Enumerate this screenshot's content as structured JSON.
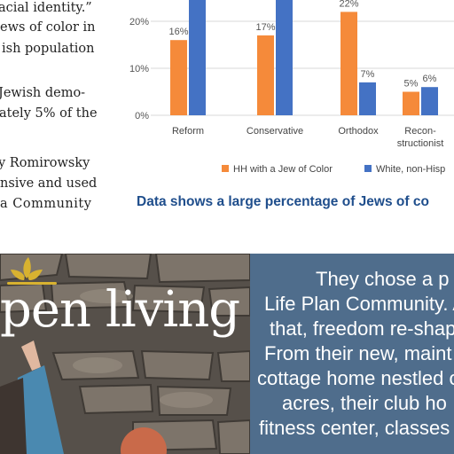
{
  "article": {
    "lines": [
      "acial identity.”",
      "ews of color in",
      "ish population",
      "",
      " Jewish demo-",
      "ately 5% of the",
      "",
      "y Romirowsky",
      "nsive and used",
      "a   Community"
    ]
  },
  "chart_data": {
    "type": "bar",
    "categories": [
      "Reform",
      "Conservative",
      "Orthodox",
      "Recon-\nstructionist"
    ],
    "series": [
      {
        "name": "HH with a Jew of Color",
        "color": "#f58a3a",
        "values": [
          16,
          17,
          22,
          5
        ]
      },
      {
        "name": "White, non-Hisp",
        "color": "#4472c4",
        "values": [
          null,
          null,
          7,
          6
        ]
      }
    ],
    "data_labels": [
      [
        "16%",
        "17%",
        "22%",
        "5%"
      ],
      [
        "",
        "",
        "7%",
        "6%"
      ]
    ],
    "yticks": [
      "0%",
      "10%",
      "20%"
    ],
    "ylim": [
      0,
      26
    ],
    "caption": "Data shows a large percentage of Jews of co",
    "caption_color": "#1f4e8c"
  },
  "promo": {
    "headline": "pen living",
    "lines": [
      "They chose a p",
      "Life Plan Community. A",
      "that, freedom re-shape",
      "From their new, maint",
      "cottage home nestled o",
      "acres, their club ho",
      "fitness center, classes"
    ]
  }
}
